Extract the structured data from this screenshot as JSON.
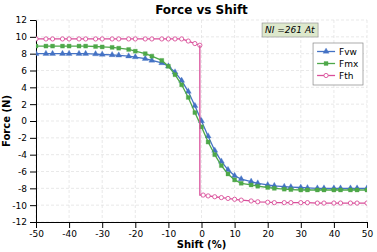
{
  "chart_data": {
    "type": "line",
    "title": "Force vs Shift",
    "xlabel": "Shift (%)",
    "ylabel": "Force (N)",
    "annotation": "NI =261 At",
    "xlim": [
      -50,
      50
    ],
    "ylim": [
      -12,
      12
    ],
    "xticks": [
      -50,
      -40,
      -30,
      -20,
      -10,
      0,
      10,
      20,
      30,
      40,
      50
    ],
    "yticks": [
      -12,
      -10,
      -8,
      -6,
      -4,
      -2,
      0,
      2,
      4,
      6,
      8,
      10,
      12
    ],
    "grid": true,
    "legend": "upper right",
    "series": [
      {
        "name": "Fvw",
        "color": "#4472c4",
        "marker": "triangle",
        "x": [
          -50,
          -47,
          -45,
          -42,
          -40,
          -37,
          -35,
          -32,
          -30,
          -27,
          -25,
          -22,
          -20,
          -17,
          -15,
          -12,
          -10,
          -8,
          -6,
          -4,
          -2,
          0,
          2,
          4,
          6,
          8,
          10,
          12,
          15,
          17,
          20,
          22,
          25,
          27,
          30,
          32,
          35,
          37,
          40,
          42,
          45,
          47,
          50
        ],
        "values": [
          8.0,
          8.0,
          8.0,
          8.0,
          8.0,
          8.0,
          8.0,
          7.95,
          7.9,
          7.85,
          7.8,
          7.7,
          7.6,
          7.4,
          7.2,
          6.9,
          6.5,
          5.8,
          4.8,
          3.5,
          1.8,
          0.0,
          -1.8,
          -3.5,
          -4.8,
          -5.8,
          -6.5,
          -6.9,
          -7.2,
          -7.4,
          -7.6,
          -7.7,
          -7.8,
          -7.85,
          -7.9,
          -7.95,
          -8.0,
          -8.0,
          -8.0,
          -8.0,
          -8.0,
          -8.0,
          -8.0
        ]
      },
      {
        "name": "Fmx",
        "color": "#4ea849",
        "marker": "square",
        "x": [
          -50,
          -47,
          -45,
          -42,
          -40,
          -37,
          -35,
          -32,
          -30,
          -27,
          -25,
          -22,
          -20,
          -17,
          -15,
          -12,
          -10,
          -8,
          -6,
          -4,
          -2,
          0,
          2,
          4,
          6,
          8,
          10,
          12,
          15,
          17,
          20,
          22,
          25,
          27,
          30,
          32,
          35,
          37,
          40,
          42,
          45,
          47,
          50
        ],
        "values": [
          8.9,
          8.9,
          8.9,
          8.9,
          8.9,
          8.9,
          8.9,
          8.85,
          8.8,
          8.75,
          8.65,
          8.5,
          8.3,
          8.0,
          7.7,
          7.2,
          6.5,
          5.5,
          4.3,
          2.8,
          1.0,
          -0.7,
          -2.5,
          -4.0,
          -5.3,
          -6.3,
          -7.0,
          -7.4,
          -7.6,
          -7.75,
          -7.9,
          -8.0,
          -8.1,
          -8.15,
          -8.2,
          -8.2,
          -8.2,
          -8.2,
          -8.2,
          -8.2,
          -8.2,
          -8.2,
          -8.2
        ]
      },
      {
        "name": "Fth",
        "color": "#d94f9a",
        "marker": "circle-open",
        "x": [
          -50,
          -47,
          -45,
          -42,
          -40,
          -37,
          -35,
          -32,
          -30,
          -27,
          -25,
          -22,
          -20,
          -17,
          -15,
          -12,
          -10,
          -8,
          -6,
          -4,
          -2,
          -0.5
        ],
        "values": [
          9.75,
          9.75,
          9.75,
          9.75,
          9.75,
          9.75,
          9.75,
          9.75,
          9.75,
          9.75,
          9.75,
          9.75,
          9.75,
          9.75,
          9.75,
          9.75,
          9.75,
          9.75,
          9.75,
          9.5,
          9.2,
          9.0
        ]
      },
      {
        "color": "#d94f9a",
        "marker": "none",
        "x": [
          -0.5,
          -0.5,
          0.5
        ],
        "values": [
          9.0,
          -8.8,
          -8.8
        ]
      },
      {
        "color": "#d94f9a",
        "marker": "circle-open",
        "x": [
          0.5,
          2,
          4,
          6,
          8,
          10,
          12,
          15,
          17,
          20,
          22,
          25,
          27,
          30,
          32,
          35,
          37,
          40,
          42,
          45,
          47,
          50
        ],
        "values": [
          -8.8,
          -8.9,
          -9.0,
          -9.1,
          -9.2,
          -9.3,
          -9.4,
          -9.5,
          -9.6,
          -9.65,
          -9.7,
          -9.7,
          -9.7,
          -9.7,
          -9.7,
          -9.75,
          -9.75,
          -9.75,
          -9.75,
          -9.75,
          -9.75,
          -9.75
        ]
      }
    ]
  }
}
